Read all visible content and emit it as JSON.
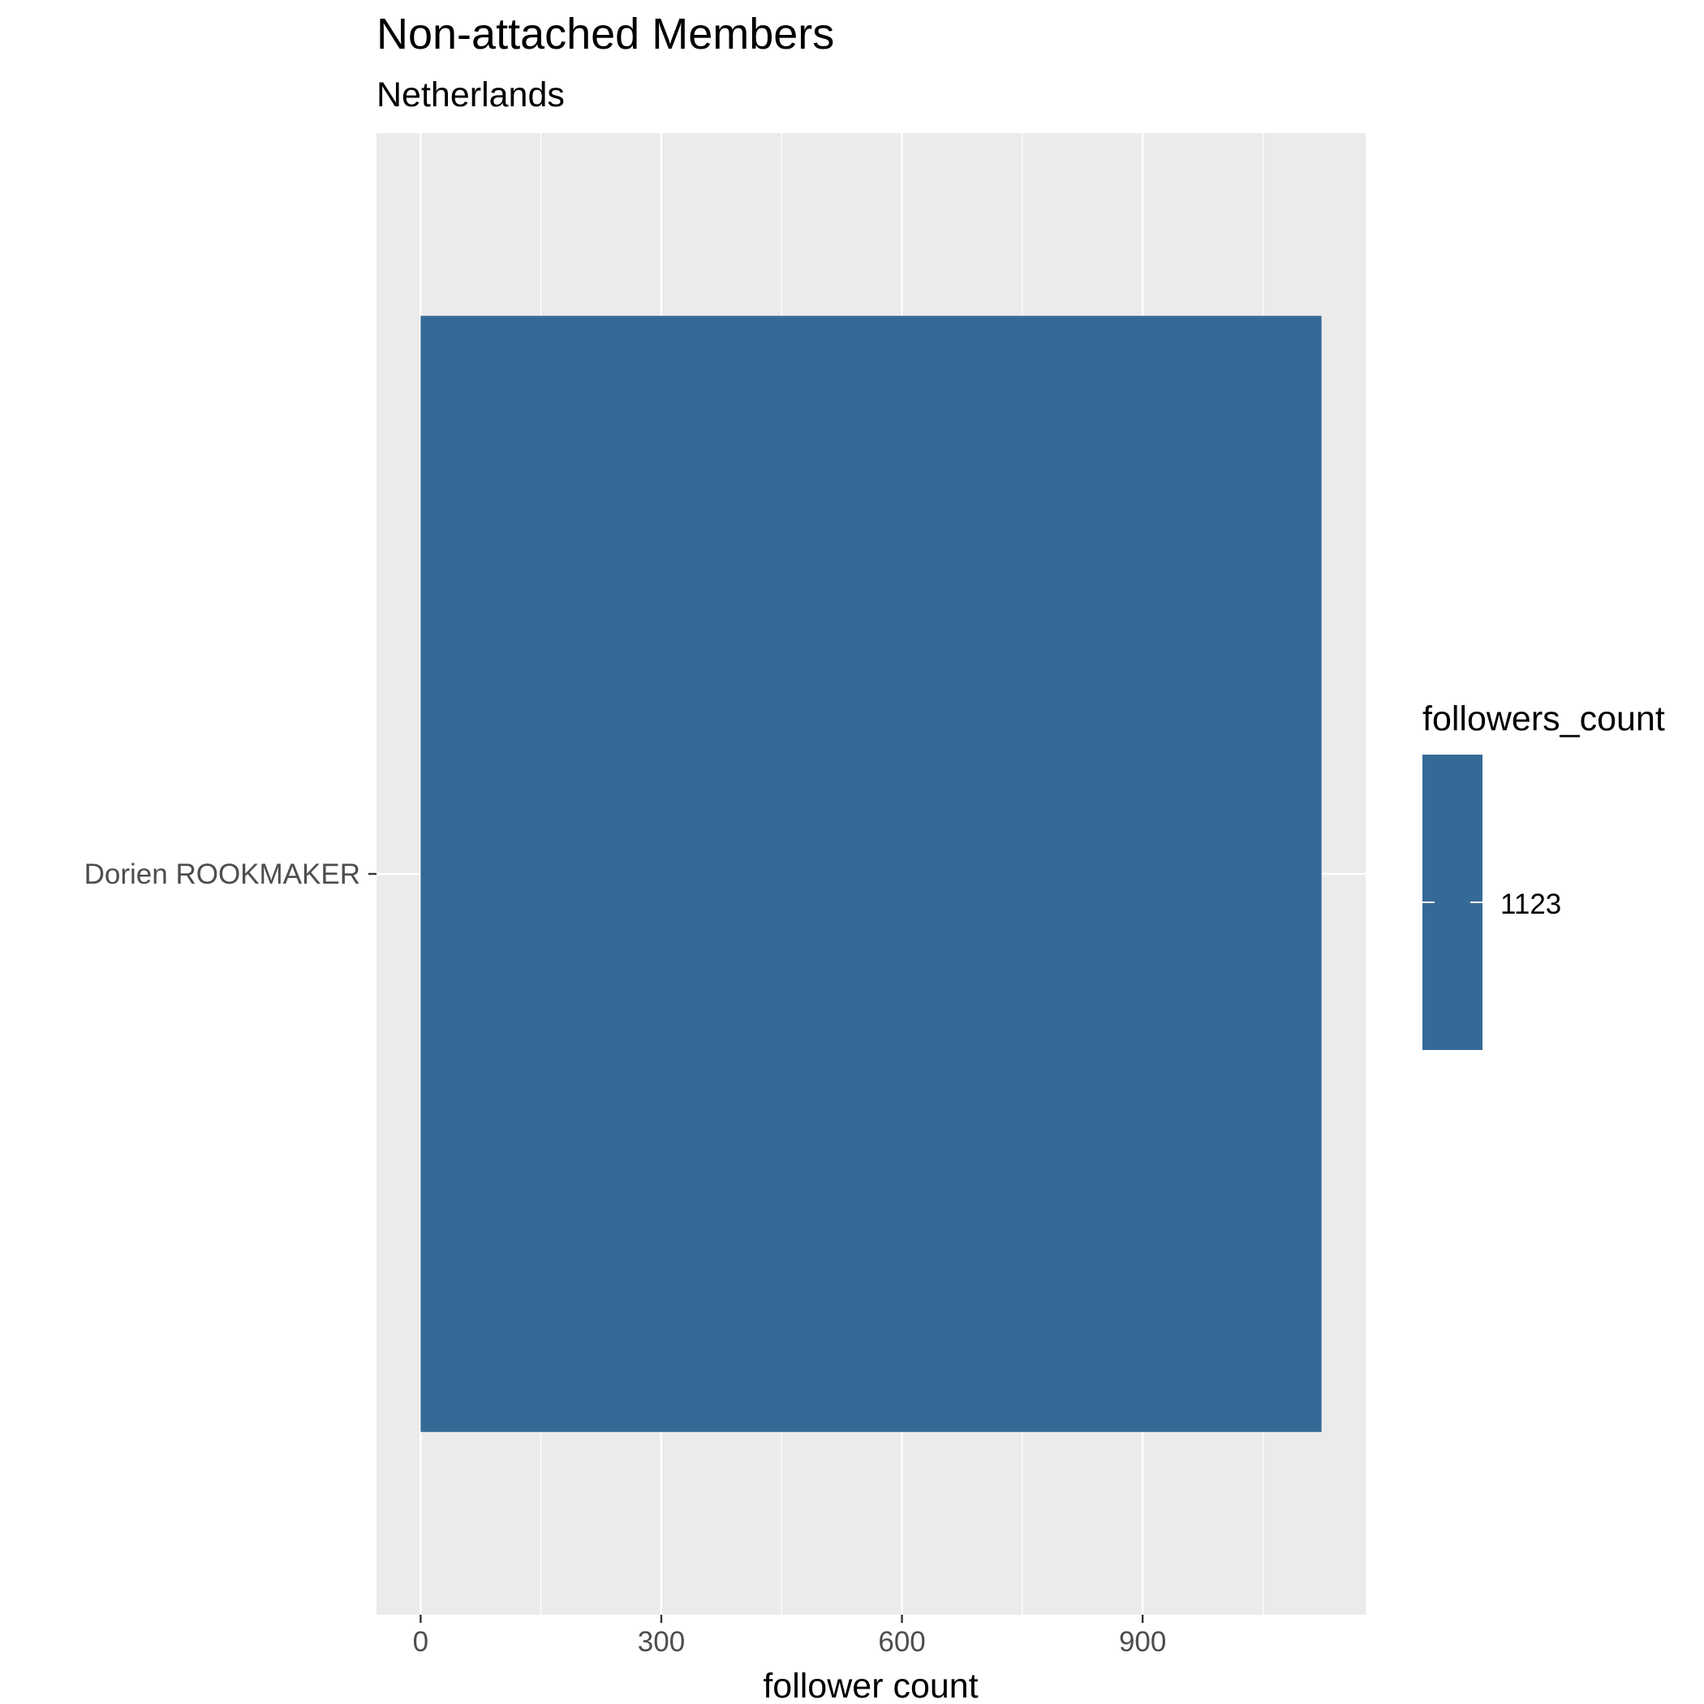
{
  "chart_data": {
    "type": "bar",
    "orientation": "horizontal",
    "title": "Non-attached Members",
    "subtitle": "Netherlands",
    "xlabel": "follower count",
    "ylabel": "",
    "categories": [
      "Dorien ROOKMAKER"
    ],
    "values": [
      1123
    ],
    "xlim": [
      -55,
      1178
    ],
    "x_ticks": [
      0,
      300,
      600,
      900
    ],
    "x_tick_labels": [
      "0",
      "300",
      "600",
      "900"
    ],
    "grid": true,
    "legend": {
      "title": "followers_count",
      "entries": [
        {
          "label": "1123",
          "value": 1123
        }
      ],
      "placement": "right"
    },
    "colors": {
      "bar": "#356A97",
      "panel": "#EBEBEB",
      "grid": "#FFFFFF",
      "axis_text": "#4D4D4D",
      "title_text": "#000000"
    }
  }
}
